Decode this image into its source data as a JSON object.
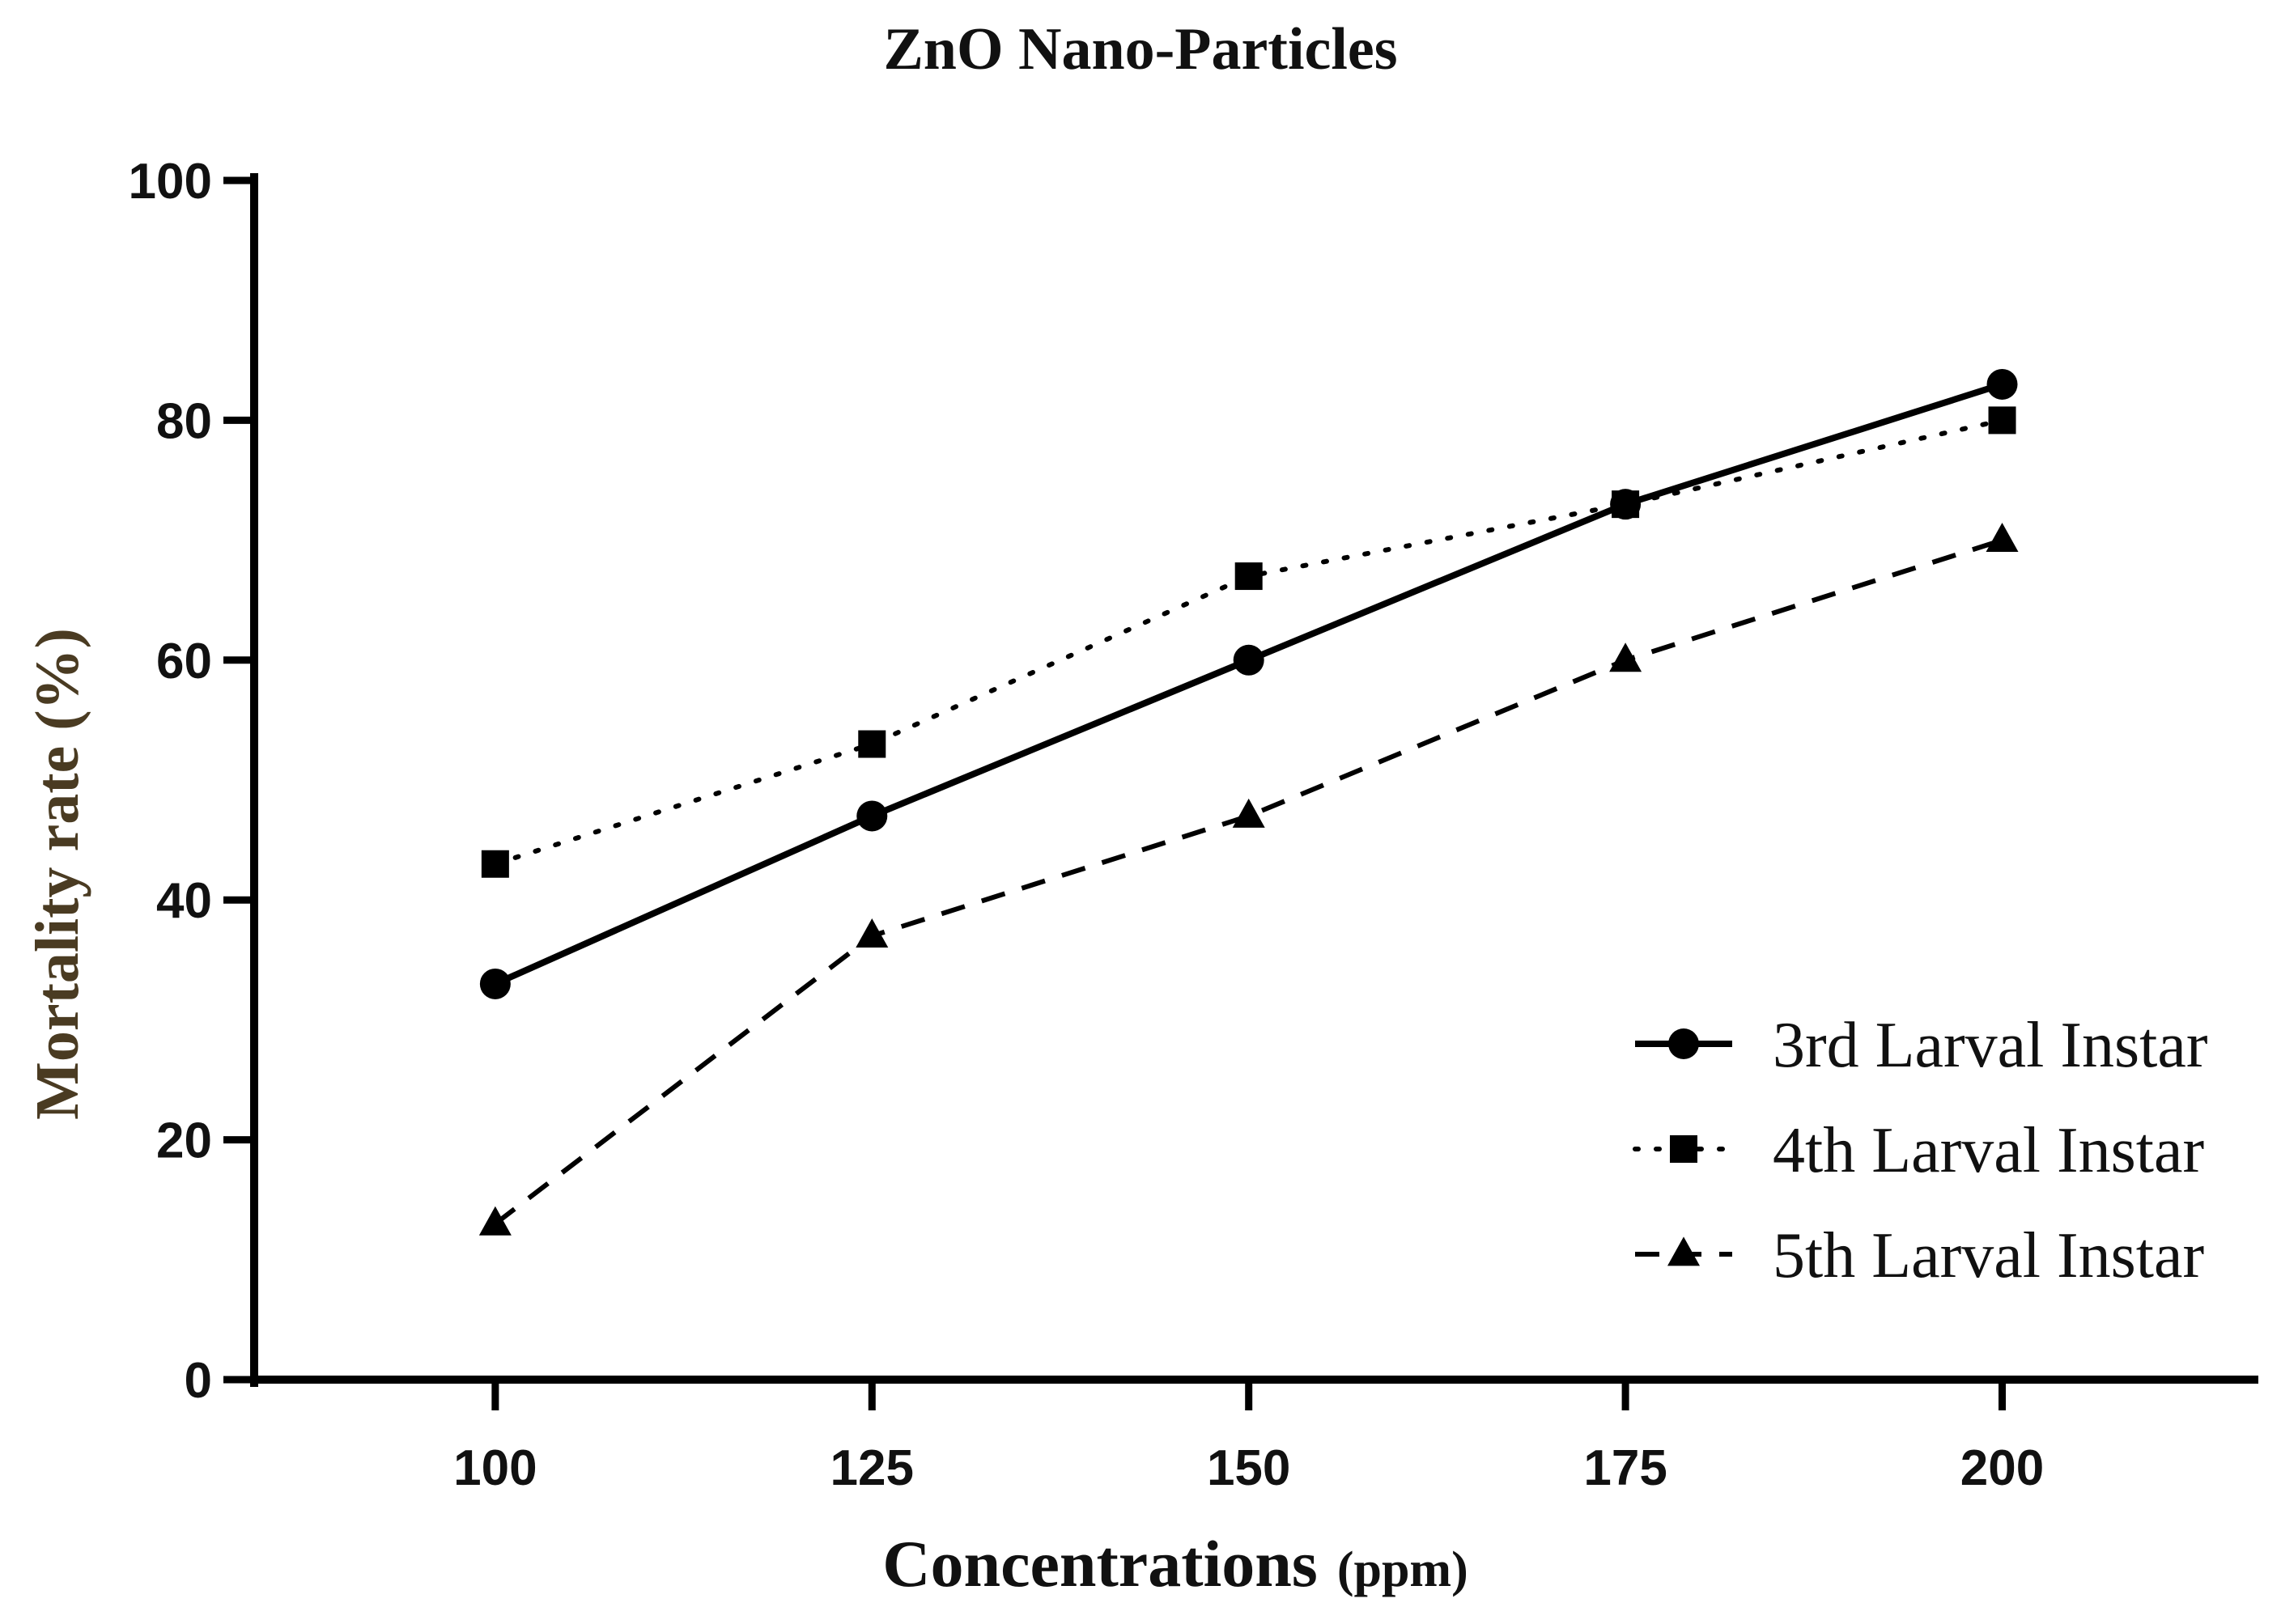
{
  "chart_data": {
    "type": "line",
    "title": "ZnO Nano-Particles",
    "xlabel": "Concentrations",
    "xlabel_unit": "(ppm)",
    "ylabel": "Mortality rate (%)",
    "x": [
      100,
      125,
      150,
      175,
      200
    ],
    "x_tick_labels": [
      "100",
      "125",
      "150",
      "175",
      "200"
    ],
    "xlim": [
      84,
      217
    ],
    "ylim": [
      0,
      100
    ],
    "y_ticks": [
      0,
      20,
      40,
      60,
      80,
      100
    ],
    "grid": false,
    "legend_position": "bottom-right",
    "series": [
      {
        "name": "3rd Larval Instar",
        "values": [
          33,
          47,
          60,
          73,
          83
        ],
        "marker": "circle",
        "line_style": "solid",
        "color": "#000000"
      },
      {
        "name": "4th Larval Instar",
        "values": [
          43,
          53,
          67,
          73,
          80
        ],
        "marker": "square",
        "line_style": "dotted",
        "color": "#000000"
      },
      {
        "name": "5th Larval Instar",
        "values": [
          13,
          37,
          47,
          60,
          70
        ],
        "marker": "triangle",
        "line_style": "dashed",
        "color": "#000000"
      }
    ]
  },
  "colors": {
    "axis": "#000000",
    "ylabel": "#4a3b22",
    "background": "#ffffff"
  }
}
